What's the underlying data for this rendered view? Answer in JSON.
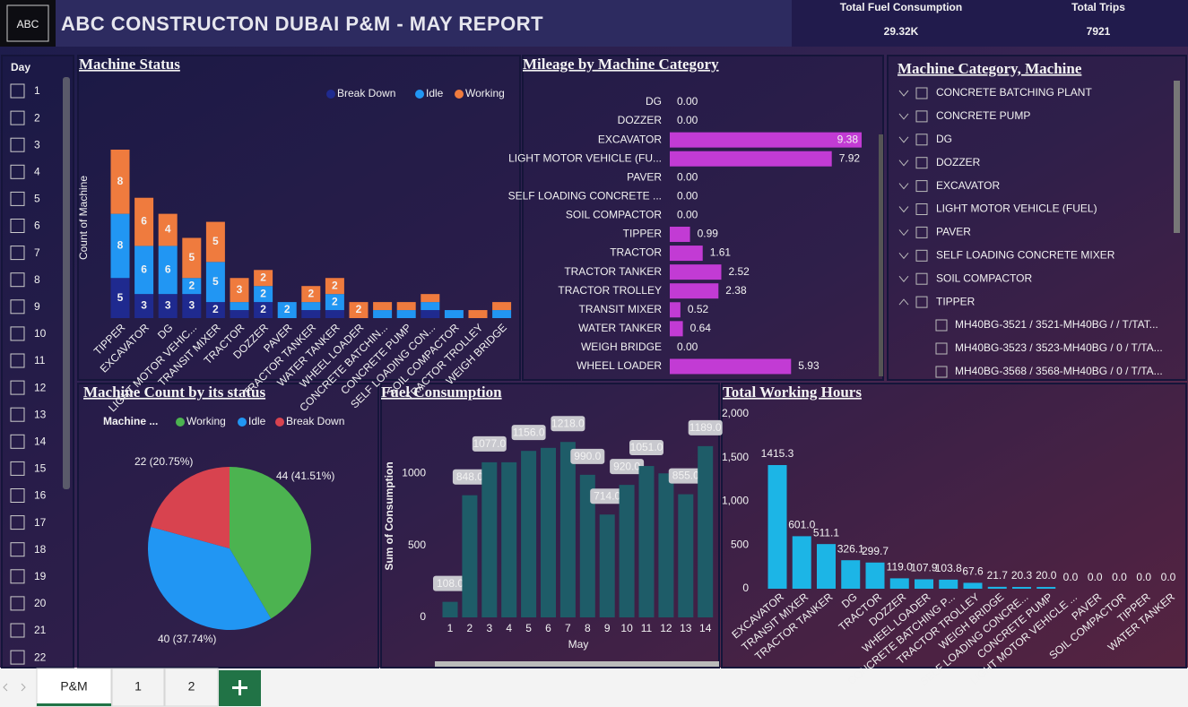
{
  "header": {
    "logo_text": "ABC",
    "title": "ABC CONSTRUCTON DUBAI P&M - MAY REPORT"
  },
  "kpis": [
    {
      "label": "Total Fuel Consumption",
      "value": "29.32K"
    },
    {
      "label": "Total Trips",
      "value": 7921
    }
  ],
  "day_slicer": {
    "title": "Day",
    "items": [
      1,
      2,
      3,
      4,
      5,
      6,
      7,
      8,
      9,
      10,
      11,
      12,
      13,
      14,
      15,
      16,
      17,
      18,
      19,
      20,
      21,
      22
    ]
  },
  "chart_data": [
    {
      "type": "stacked_bar",
      "title": "Machine Status",
      "y_label": "Count of Machine",
      "legend": "top-right",
      "categories": [
        "TIPPER",
        "EXCAVATOR",
        "DG",
        "LIGHT MOTOR VEHIC...",
        "TRANSIT MIXER",
        "TRACTOR",
        "DOZZER",
        "PAVER",
        "TRACTOR TANKER",
        "WATER TANKER",
        "WHEEL LOADER",
        "CONCRETE BATCHIN...",
        "CONCRETE PUMP",
        "SELF LOADING CON...",
        "SOIL COMPACTOR",
        "TRACTOR TROLLEY",
        "WEIGH BRIDGE"
      ],
      "series": [
        {
          "name": "Break Down",
          "color": "#1f2a8f",
          "values": [
            5,
            3,
            3,
            3,
            2,
            1,
            2,
            0,
            1,
            1,
            0,
            0,
            0,
            1,
            0,
            0,
            0
          ]
        },
        {
          "name": "Idle",
          "color": "#2196f3",
          "values": [
            8,
            6,
            6,
            2,
            5,
            1,
            2,
            2,
            1,
            2,
            0,
            1,
            1,
            1,
            1,
            0,
            1
          ]
        },
        {
          "name": "Working",
          "color": "#ef7b3e",
          "values": [
            8,
            6,
            4,
            5,
            5,
            3,
            2,
            0,
            2,
            2,
            2,
            1,
            1,
            1,
            0,
            1,
            1
          ]
        }
      ]
    },
    {
      "type": "hbar",
      "title": "Mileage by Machine Category",
      "color": "#c23bd4",
      "categories": [
        "DG",
        "DOZZER",
        "EXCAVATOR",
        "LIGHT MOTOR VEHICLE (FU...",
        "PAVER",
        "SELF LOADING CONCRETE ...",
        "SOIL COMPACTOR",
        "TIPPER",
        "TRACTOR",
        "TRACTOR TANKER",
        "TRACTOR TROLLEY",
        "TRANSIT MIXER",
        "WATER TANKER",
        "WEIGH BRIDGE",
        "WHEEL LOADER"
      ],
      "values": [
        0,
        0,
        9.38,
        7.92,
        0,
        0,
        0,
        0.99,
        1.61,
        2.52,
        2.38,
        0.52,
        0.64,
        0,
        5.93
      ],
      "value_labels": [
        "0.00",
        "0.00",
        "9.38",
        "7.92",
        "0.00",
        "0.00",
        "0.00",
        "0.99",
        "1.61",
        "2.52",
        "2.38",
        "0.52",
        "0.64",
        "0.00",
        "5.93"
      ]
    },
    {
      "type": "pie",
      "title": "Machine Count by its status",
      "legend_title": "Machine ...",
      "categories": [
        "Working",
        "Idle",
        "Break Down"
      ],
      "values": [
        44,
        40,
        22
      ],
      "value_labels": [
        "44 (41.51%)",
        "40 (37.74%)",
        "22 (20.75%)"
      ],
      "colors": [
        "#4cb350",
        "#2196f3",
        "#d8434f"
      ]
    },
    {
      "type": "bar",
      "title": "Fuel Consumption",
      "x_label": "May",
      "y_label": "Sum of Consumption",
      "color": "#1e5c68",
      "categories": [
        1,
        2,
        3,
        4,
        5,
        6,
        7,
        8,
        9,
        10,
        11,
        12,
        13,
        14
      ],
      "values": [
        108,
        848,
        1077,
        1077,
        1156,
        1177,
        1218,
        990,
        714,
        920,
        1051,
        1000,
        855,
        1189
      ],
      "value_labels": [
        "108.0",
        "848.0",
        "1077.0",
        null,
        "1156.0",
        null,
        "1218.0",
        "990.0",
        "714.0",
        "920.0",
        "1051.0",
        null,
        "855.0",
        "1189.0"
      ],
      "ylim": [
        0,
        1350
      ],
      "yticks": [
        0,
        500,
        1000
      ]
    },
    {
      "type": "bar",
      "title": "Total Working Hours",
      "color": "#1cb5e6",
      "categories": [
        "EXCAVATOR",
        "TRANSIT MIXER",
        "TRACTOR TANKER",
        "DG",
        "TRACTOR",
        "DOZZER",
        "WHEEL LOADER",
        "CONCRETE BATCHING P...",
        "TRACTOR TROLLEY",
        "WEIGH BRIDGE",
        "SELF LOADING CONCRE...",
        "CONCRETE PUMP",
        "LIGHT MOTOR VEHICLE ...",
        "PAVER",
        "SOIL COMPACTOR",
        "TIPPER",
        "WATER TANKER"
      ],
      "values": [
        1415.3,
        601,
        511.1,
        326.1,
        299.7,
        119,
        107.9,
        103.8,
        67.6,
        21.7,
        20.3,
        20,
        0,
        0,
        0,
        0,
        0
      ],
      "value_labels": [
        "1415.3",
        "601.0",
        "511.1",
        "326.1",
        "299.7",
        "119.0",
        "107.9",
        "103.8",
        "67.6",
        "21.7",
        "20.3",
        "20.0",
        "0.0",
        "0.0",
        "0.0",
        "0.0",
        "0.0"
      ],
      "ylim": [
        0,
        2000
      ],
      "yticks": [
        0,
        500,
        {
          "value": 1000,
          "label": "1,000"
        },
        {
          "value": 1500,
          "label": "1,500"
        },
        {
          "value": 2000,
          "label": "2,000"
        }
      ]
    }
  ],
  "category_tree": {
    "title": "Machine Category, Machine",
    "items": [
      "CONCRETE BATCHING PLANT",
      "CONCRETE PUMP",
      "DG",
      "DOZZER",
      "EXCAVATOR",
      "LIGHT MOTOR VEHICLE (FUEL)",
      "PAVER",
      "SELF LOADING CONCRETE MIXER",
      "SOIL COMPACTOR",
      "TIPPER"
    ],
    "children": [
      "MH40BG-3521 / 3521-MH40BG / / T/TAT...",
      "MH40BG-3523 / 3523-MH40BG / 0 / T/TA...",
      "MH40BG-3568 / 3568-MH40BG / 0 / T/TA..."
    ]
  },
  "tabs": [
    "P&M",
    "1",
    "2"
  ]
}
